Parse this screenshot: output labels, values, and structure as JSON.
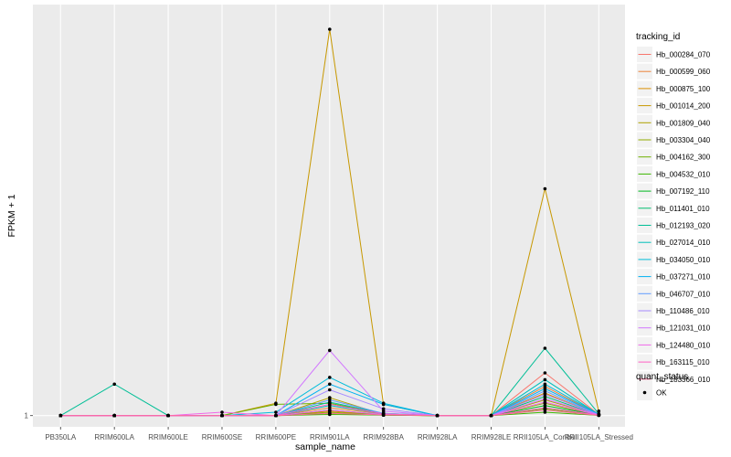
{
  "chart_data": {
    "type": "line",
    "xlabel": "sample_name",
    "ylabel": "FPKM + 1",
    "categories": [
      "PB350LA",
      "RRIM600LA",
      "RRIM600LE",
      "RRIM600SE",
      "RRIM600PE",
      "RRIM901LA",
      "RRIM928BA",
      "RRIM928LA",
      "RRIM928LE",
      "RRII105LA_Control",
      "RRII105LA_Stressed"
    ],
    "y_ticks": [
      {
        "value": 1,
        "label": "1"
      }
    ],
    "ylim": [
      0.5,
      19.3
    ],
    "grid": true,
    "legend_position": "right",
    "legend_title": "tracking_id",
    "series": [
      {
        "name": "Hb_000284_070",
        "color": "#F8766D",
        "values": [
          1,
          1,
          1,
          1,
          1,
          1.1,
          1.05,
          1,
          1,
          2.9,
          1.05
        ]
      },
      {
        "name": "Hb_000599_060",
        "color": "#EC8239",
        "values": [
          1,
          1,
          1,
          1,
          1,
          1.35,
          1.08,
          1,
          1,
          2.3,
          1.05
        ]
      },
      {
        "name": "Hb_000875_100",
        "color": "#DB8E00",
        "values": [
          1,
          1,
          1,
          1,
          1,
          1.2,
          1.02,
          1,
          1,
          2.0,
          1.03
        ]
      },
      {
        "name": "Hb_001014_200",
        "color": "#C79800",
        "values": [
          1,
          1,
          1,
          1,
          1.55,
          18.2,
          1.5,
          1,
          1,
          11.1,
          1.2
        ]
      },
      {
        "name": "Hb_001809_040",
        "color": "#AFA100",
        "values": [
          1,
          1,
          1,
          1,
          1,
          1.8,
          1.05,
          1,
          1,
          1.7,
          1.02
        ]
      },
      {
        "name": "Hb_003304_040",
        "color": "#93AA00",
        "values": [
          1,
          1,
          1,
          1,
          1,
          1.15,
          1.03,
          1,
          1,
          1.55,
          1.02
        ]
      },
      {
        "name": "Hb_004162_300",
        "color": "#6FB000",
        "values": [
          1,
          1,
          1,
          1,
          1.5,
          1.55,
          1.08,
          1,
          1,
          1.3,
          1.02
        ]
      },
      {
        "name": "Hb_004532_010",
        "color": "#3CB500",
        "values": [
          1,
          1,
          1,
          1,
          1,
          1.05,
          1.02,
          1,
          1,
          1.15,
          1.01
        ]
      },
      {
        "name": "Hb_007192_110",
        "color": "#00B81F",
        "values": [
          1,
          1,
          1,
          1,
          1,
          1.1,
          1.03,
          1,
          1,
          1.45,
          1.02
        ]
      },
      {
        "name": "Hb_011401_010",
        "color": "#00BC6E",
        "values": [
          1,
          1,
          1,
          1,
          1,
          1.25,
          1.05,
          1,
          1,
          1.85,
          1.02
        ]
      },
      {
        "name": "Hb_012193_020",
        "color": "#00BE96",
        "values": [
          1,
          2.4,
          1,
          1,
          1,
          1.6,
          1.1,
          1,
          1,
          4.0,
          1.08
        ]
      },
      {
        "name": "Hb_027014_010",
        "color": "#00BFBA",
        "values": [
          1,
          1,
          1,
          1,
          1,
          1.45,
          1.08,
          1,
          1,
          2.6,
          1.05
        ]
      },
      {
        "name": "Hb_034050_010",
        "color": "#00BCDA",
        "values": [
          1,
          1,
          1,
          1,
          1.15,
          2.7,
          1.55,
          1,
          1,
          2.4,
          1.06
        ]
      },
      {
        "name": "Hb_037271_010",
        "color": "#00B1F2",
        "values": [
          1,
          1,
          1,
          1,
          1,
          2.4,
          1.5,
          1,
          1,
          2.2,
          1.05
        ]
      },
      {
        "name": "Hb_046707_010",
        "color": "#619CFF",
        "values": [
          1,
          1,
          1,
          1,
          1,
          1.7,
          1.1,
          1,
          1,
          2.1,
          1.04
        ]
      },
      {
        "name": "Hb_110486_010",
        "color": "#A58AFF",
        "values": [
          1,
          1,
          1,
          1,
          1,
          2.15,
          1.3,
          1,
          1,
          1.95,
          1.04
        ]
      },
      {
        "name": "Hb_121031_010",
        "color": "#D277FF",
        "values": [
          1,
          1,
          1,
          1,
          1,
          3.9,
          1.2,
          1,
          1,
          1.75,
          1.03
        ]
      },
      {
        "name": "Hb_124480_010",
        "color": "#F067E9",
        "values": [
          1,
          1,
          1,
          1.15,
          1,
          1.25,
          1.05,
          1,
          1,
          1.6,
          1.02
        ]
      },
      {
        "name": "Hb_163115_010",
        "color": "#FF61C4",
        "values": [
          1,
          1,
          1,
          1,
          1,
          1.5,
          1.08,
          1,
          1,
          1.35,
          1.02
        ]
      },
      {
        "name": "Hb_183366_010",
        "color": "#FF6A98",
        "values": [
          1,
          1,
          1,
          1,
          1,
          1.1,
          1.03,
          1,
          1,
          1.25,
          1.01
        ]
      }
    ],
    "quant_status_legend": {
      "title": "quant_status",
      "label": "OK"
    }
  }
}
